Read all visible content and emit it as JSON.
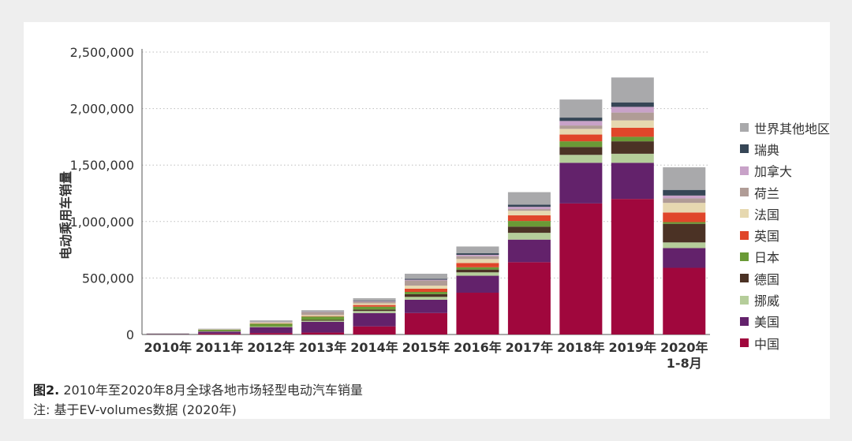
{
  "figure": {
    "label": "图2.",
    "title": "2010年至2020年8月全球各地市场轻型电动汽车销量",
    "note": "注: 基于EV-volumes数据 (2020年)"
  },
  "chart_data": {
    "type": "bar",
    "stacked": true,
    "title": "2010年至2020年8月全球各地市场轻型电动汽车销量",
    "xlabel": "",
    "ylabel": "电动乘用车销量",
    "ylim": [
      0,
      2500000
    ],
    "yticks": [
      0,
      500000,
      1000000,
      1500000,
      2000000,
      2500000
    ],
    "ytick_labels": [
      "0",
      "500,000",
      "1,000,000",
      "1,500,000",
      "2,000,000",
      "2,500,000"
    ],
    "grid": true,
    "legend_position": "right",
    "categories": [
      "2010年",
      "2011年",
      "2012年",
      "2013年",
      "2014年",
      "2015年",
      "2016年",
      "2017年",
      "2018年",
      "2019年",
      "2020年\n1-8月"
    ],
    "series": [
      {
        "name": "中国",
        "color": "#a0073d",
        "values": [
          1000,
          8000,
          13000,
          17000,
          72000,
          190000,
          370000,
          640000,
          1160000,
          1200000,
          590000
        ]
      },
      {
        "name": "美国",
        "color": "#63226b",
        "values": [
          4000,
          18000,
          50000,
          95000,
          118000,
          118000,
          150000,
          200000,
          360000,
          320000,
          175000
        ]
      },
      {
        "name": "挪威",
        "color": "#b5cd9a",
        "values": [
          500,
          2000,
          5000,
          10000,
          18000,
          25000,
          30000,
          60000,
          70000,
          80000,
          50000
        ]
      },
      {
        "name": "德国",
        "color": "#4b3225",
        "values": [
          500,
          2000,
          3000,
          7000,
          13000,
          24000,
          25000,
          55000,
          70000,
          110000,
          165000
        ]
      },
      {
        "name": "日本",
        "color": "#6a9a36",
        "values": [
          1000,
          12000,
          25000,
          30000,
          25000,
          20000,
          20000,
          50000,
          50000,
          40000,
          15000
        ]
      },
      {
        "name": "英国",
        "color": "#e0462a",
        "values": [
          200,
          1000,
          2000,
          4000,
          15000,
          28000,
          38000,
          50000,
          60000,
          80000,
          85000
        ]
      },
      {
        "name": "法国",
        "color": "#e6d8b0",
        "values": [
          200,
          2000,
          8000,
          10000,
          15000,
          28000,
          35000,
          40000,
          50000,
          65000,
          85000
        ]
      },
      {
        "name": "荷兰",
        "color": "#b09c96",
        "values": [
          200,
          500,
          5000,
          25000,
          15000,
          45000,
          25000,
          15000,
          30000,
          70000,
          40000
        ]
      },
      {
        "name": "加拿大",
        "color": "#c8a2c8",
        "values": [
          100,
          500,
          1000,
          3000,
          5000,
          7000,
          12000,
          20000,
          40000,
          50000,
          25000
        ]
      },
      {
        "name": "瑞典",
        "color": "#364656",
        "values": [
          100,
          500,
          1000,
          2000,
          5000,
          8000,
          14000,
          20000,
          30000,
          40000,
          50000
        ]
      },
      {
        "name": "世界其他地区",
        "color": "#a9a9ab",
        "values": [
          3000,
          5000,
          12000,
          12000,
          20000,
          45000,
          60000,
          110000,
          160000,
          220000,
          200000
        ]
      }
    ]
  }
}
